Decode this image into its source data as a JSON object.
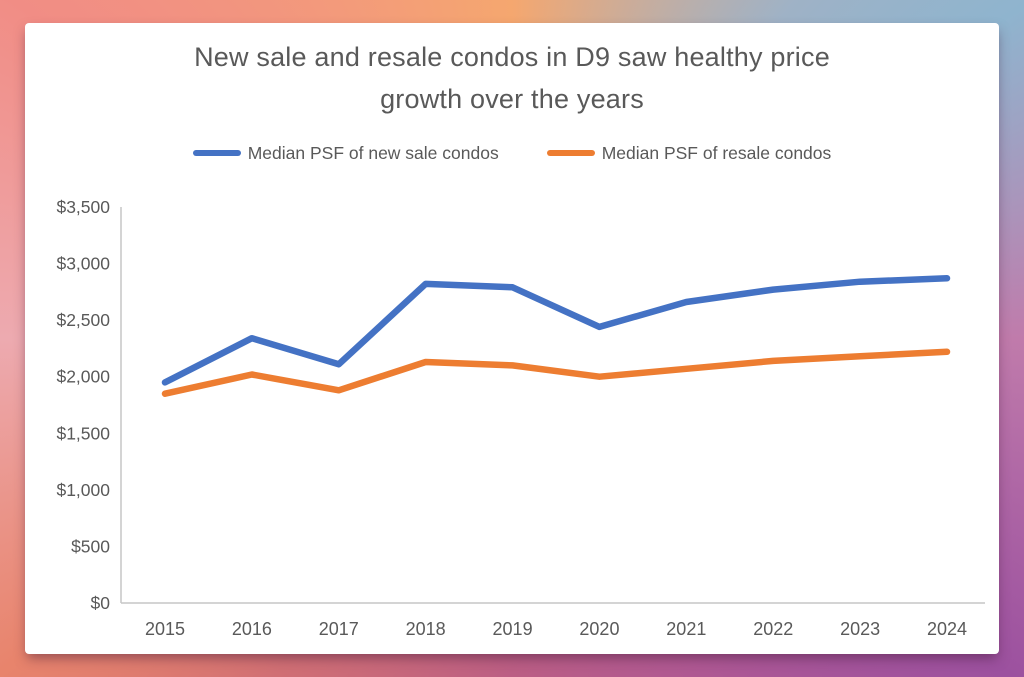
{
  "chart_data": {
    "type": "line",
    "title": "New sale and resale condos in D9 saw healthy price growth over the years",
    "x": [
      "2015",
      "2016",
      "2017",
      "2018",
      "2019",
      "2020",
      "2021",
      "2022",
      "2023",
      "2024"
    ],
    "series": [
      {
        "name": "Median PSF of new sale condos",
        "color": "#4472C4",
        "values": [
          1950,
          2340,
          2110,
          2820,
          2790,
          2440,
          2660,
          2770,
          2840,
          2870
        ]
      },
      {
        "name": "Median PSF of resale condos",
        "color": "#ED7D31",
        "values": [
          1850,
          2020,
          1880,
          2130,
          2100,
          2000,
          2070,
          2140,
          2180,
          2220
        ]
      }
    ],
    "xlabel": "",
    "ylabel": "",
    "ylim": [
      0,
      3500
    ],
    "ytick_step": 500,
    "ytick_labels": [
      "$0",
      "$500",
      "$1,000",
      "$1,500",
      "$2,000",
      "$2,500",
      "$3,000",
      "$3,500"
    ],
    "grid": false,
    "legend_position": "top",
    "axis_color": "#C6C6C6",
    "text_color": "#595959"
  }
}
